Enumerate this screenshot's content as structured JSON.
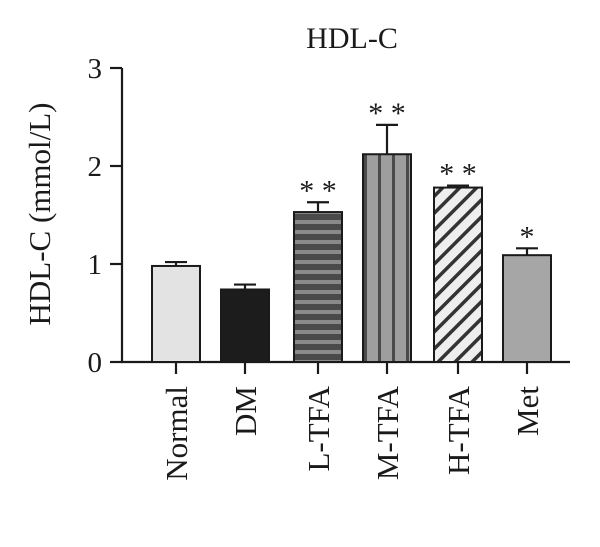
{
  "chart_data": {
    "type": "bar",
    "title": "HDL-C",
    "ylabel": "HDL-C (mmol/L)",
    "xlabel": "",
    "ylim": [
      0,
      3
    ],
    "yticks": [
      0,
      1,
      2,
      3
    ],
    "grid": false,
    "categories": [
      "Normal",
      "DM",
      "L-TFA",
      "M-TFA",
      "H-TFA",
      "Met"
    ],
    "values": [
      0.98,
      0.74,
      1.53,
      2.12,
      1.78,
      1.09
    ],
    "errors": [
      0.04,
      0.05,
      0.1,
      0.3,
      0.02,
      0.07
    ],
    "significance": [
      "",
      "",
      "* *",
      "* *",
      "* *",
      "*"
    ],
    "fills": [
      {
        "pattern": "solid",
        "color": "#e3e3e3"
      },
      {
        "pattern": "solid",
        "color": "#1c1c1c"
      },
      {
        "pattern": "horizontal-stripes",
        "color": "#444444"
      },
      {
        "pattern": "vertical-stripes",
        "color": "#9a9a9a"
      },
      {
        "pattern": "diagonal-stripes",
        "color": "#e6e6e6"
      },
      {
        "pattern": "solid",
        "color": "#a6a6a6"
      }
    ]
  }
}
